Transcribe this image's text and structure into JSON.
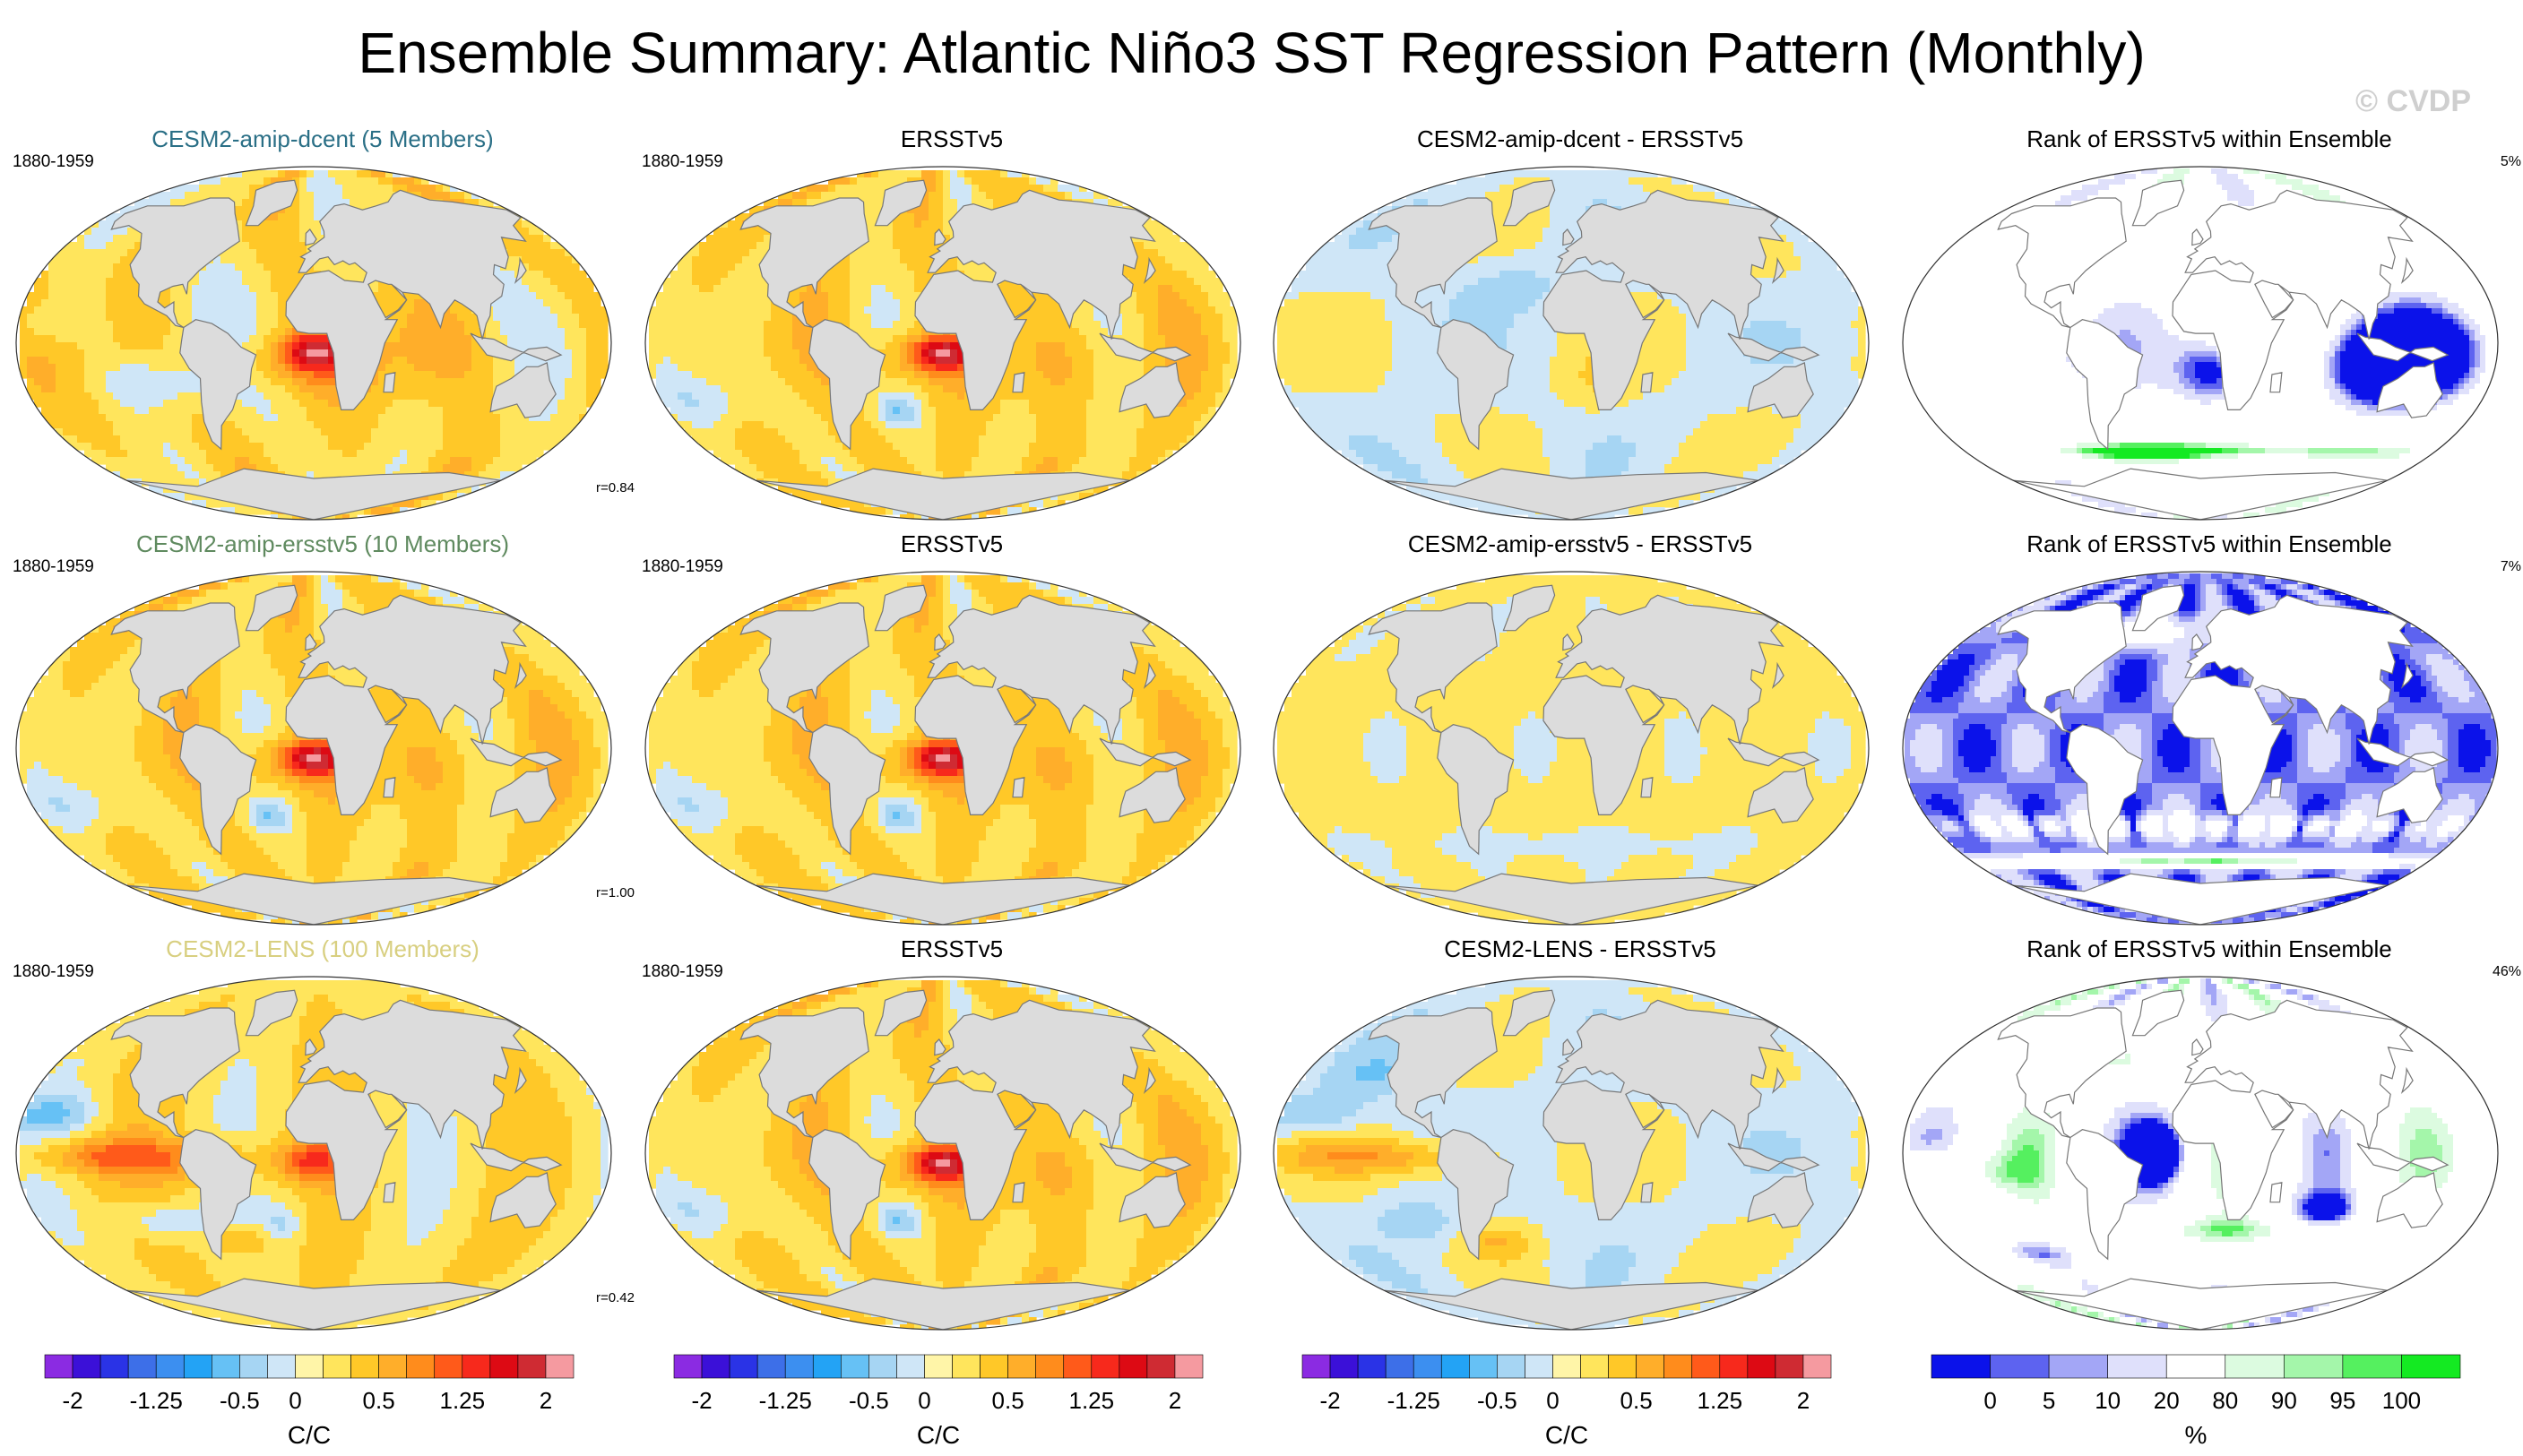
{
  "title": "Ensemble Summary: Atlantic Niño3 SST Regression Pattern (Monthly)",
  "watermark": "© CVDP",
  "colors": {
    "title_dcent": "#2a6f86",
    "title_ersst": "#6a8a6a",
    "title_lens": "#d8cf80",
    "land": "#dcdcdc",
    "coast": "#777777"
  },
  "rows": [
    {
      "panels": [
        {
          "kind": "model",
          "title": "CESM2-amip-dcent (5 Members)",
          "title_color": "#2a6f86",
          "years": "1880-1959",
          "r_text": "r=0.84"
        },
        {
          "kind": "obs",
          "title": "ERSSTv5",
          "years": "1880-1959"
        },
        {
          "kind": "diff",
          "title": "CESM2-amip-dcent - ERSSTv5"
        },
        {
          "kind": "rank",
          "title": "Rank of ERSSTv5 within Ensemble",
          "pct_text": "5%"
        }
      ]
    },
    {
      "panels": [
        {
          "kind": "model",
          "title": "CESM2-amip-ersstv5 (10 Members)",
          "title_color": "#5f8a5f",
          "years": "1880-1959",
          "r_text": "r=1.00"
        },
        {
          "kind": "obs",
          "title": "ERSSTv5",
          "years": "1880-1959"
        },
        {
          "kind": "diff",
          "title": "CESM2-amip-ersstv5 - ERSSTv5"
        },
        {
          "kind": "rank",
          "title": "Rank of ERSSTv5 within Ensemble",
          "pct_text": "7%"
        }
      ]
    },
    {
      "panels": [
        {
          "kind": "model",
          "title": "CESM2-LENS (100 Members)",
          "title_color": "#d8cf80",
          "years": "1880-1959",
          "r_text": "r=0.42"
        },
        {
          "kind": "obs",
          "title": "ERSSTv5",
          "years": "1880-1959"
        },
        {
          "kind": "diff",
          "title": "CESM2-LENS - ERSSTv5"
        },
        {
          "kind": "rank",
          "title": "Rank of ERSSTv5 within Ensemble",
          "pct_text": "46%"
        }
      ]
    }
  ],
  "colorbars": [
    {
      "unit": "C/C",
      "tick_labels": [
        "-2",
        "-1.25",
        "-0.5",
        "0",
        "0.5",
        "1.25",
        "2"
      ],
      "colors": [
        "#8b2be2",
        "#3b10d8",
        "#2a33e6",
        "#3d6fe8",
        "#3c8ff0",
        "#23a3f5",
        "#66c1f5",
        "#a6d5f3",
        "#cfe6f7",
        "#fff5a8",
        "#ffe55c",
        "#ffc828",
        "#ffae2a",
        "#ff8c1c",
        "#ff5a1a",
        "#f7291c",
        "#dd0a14",
        "#cf2b33",
        "#f59aa0"
      ]
    },
    {
      "unit": "C/C",
      "tick_labels": [
        "-2",
        "-1.25",
        "-0.5",
        "0",
        "0.5",
        "1.25",
        "2"
      ],
      "colors": [
        "#8b2be2",
        "#3b10d8",
        "#2a33e6",
        "#3d6fe8",
        "#3c8ff0",
        "#23a3f5",
        "#66c1f5",
        "#a6d5f3",
        "#cfe6f7",
        "#fff5a8",
        "#ffe55c",
        "#ffc828",
        "#ffae2a",
        "#ff8c1c",
        "#ff5a1a",
        "#f7291c",
        "#dd0a14",
        "#cf2b33",
        "#f59aa0"
      ]
    },
    {
      "unit": "C/C",
      "tick_labels": [
        "-2",
        "-1.25",
        "-0.5",
        "0",
        "0.5",
        "1.25",
        "2"
      ],
      "colors": [
        "#8b2be2",
        "#3b10d8",
        "#2a33e6",
        "#3d6fe8",
        "#3c8ff0",
        "#23a3f5",
        "#66c1f5",
        "#a6d5f3",
        "#cfe6f7",
        "#fff5a8",
        "#ffe55c",
        "#ffc828",
        "#ffae2a",
        "#ff8c1c",
        "#ff5a1a",
        "#f7291c",
        "#dd0a14",
        "#cf2b33",
        "#f59aa0"
      ]
    },
    {
      "unit": "%",
      "tick_labels": [
        "0",
        "5",
        "10",
        "20",
        "80",
        "90",
        "95",
        "100"
      ],
      "colors": [
        "#0b12ea",
        "#5d63f0",
        "#a3a6f6",
        "#dfe0fb",
        "#ffffff",
        "#dcfbe0",
        "#a4f6aa",
        "#55f05f",
        "#14ea22"
      ]
    }
  ],
  "chart_data": [
    {
      "type": "heatmap",
      "title": "Ensemble Summary: Atlantic Niño3 SST Regression Pattern (Monthly)",
      "description_units": "C/C",
      "contour_levels": [
        -2,
        -1.75,
        -1.5,
        -1.25,
        -1,
        -0.75,
        -0.5,
        -0.25,
        0,
        0.25,
        0.5,
        0.75,
        1,
        1.25,
        1.5,
        1.75,
        2
      ],
      "pattern_correlations": {
        "CESM2-amip-dcent": 0.84,
        "CESM2-amip-ersstv5": 1.0,
        "CESM2-LENS": 0.42
      },
      "rank_percent": {
        "CESM2-amip-dcent": 5,
        "CESM2-amip-ersstv5": 7,
        "CESM2-LENS": 46
      },
      "rank_levels": [
        0,
        5,
        10,
        20,
        80,
        90,
        95,
        100
      ],
      "period": "1880-1959"
    }
  ]
}
